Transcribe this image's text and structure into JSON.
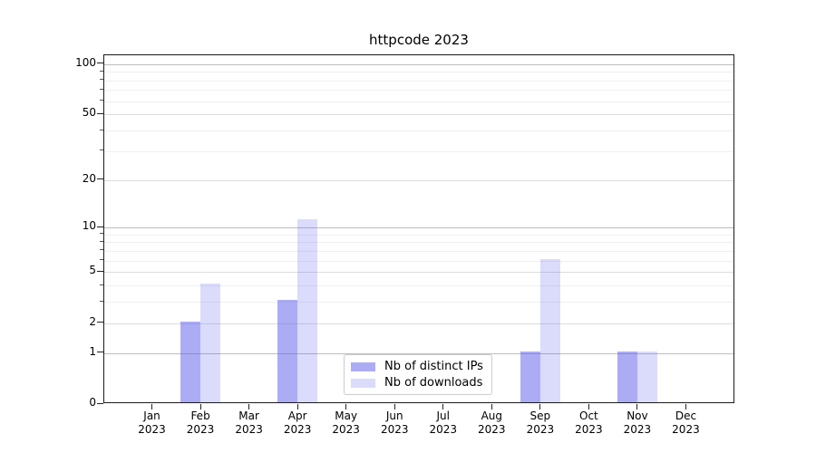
{
  "title": "httpcode 2023",
  "chart_data": {
    "type": "bar",
    "title": "httpcode 2023",
    "categories": [
      "Jan 2023",
      "Feb 2023",
      "Mar 2023",
      "Apr 2023",
      "May 2023",
      "Jun 2023",
      "Jul 2023",
      "Aug 2023",
      "Sep 2023",
      "Oct 2023",
      "Nov 2023",
      "Dec 2023"
    ],
    "series": [
      {
        "name": "Nb of distinct IPs",
        "color": "rgba(90,90,235,0.5)",
        "values": [
          0,
          2,
          0,
          3,
          0,
          0,
          0,
          0,
          1,
          0,
          1,
          0
        ]
      },
      {
        "name": "Nb of downloads",
        "color": "rgba(90,90,235,0.22)",
        "values": [
          0,
          4,
          0,
          11,
          0,
          0,
          0,
          0,
          6,
          0,
          1,
          0
        ]
      }
    ],
    "yscale": "log1p",
    "ylim": [
      0,
      113
    ],
    "yticks": [
      0,
      1,
      2,
      5,
      10,
      20,
      50,
      100
    ],
    "yticks_minor": [
      3,
      4,
      6,
      7,
      8,
      9,
      30,
      40,
      60,
      70,
      80,
      90
    ],
    "grid": true,
    "legend_position": "lower center"
  },
  "colors": {
    "background": "#ffffff",
    "axis": "#1a1a1a",
    "grid_major": "#bdbdbd",
    "grid_mid": "#dddddd",
    "grid_minor": "#efefef",
    "text": "#000000"
  }
}
